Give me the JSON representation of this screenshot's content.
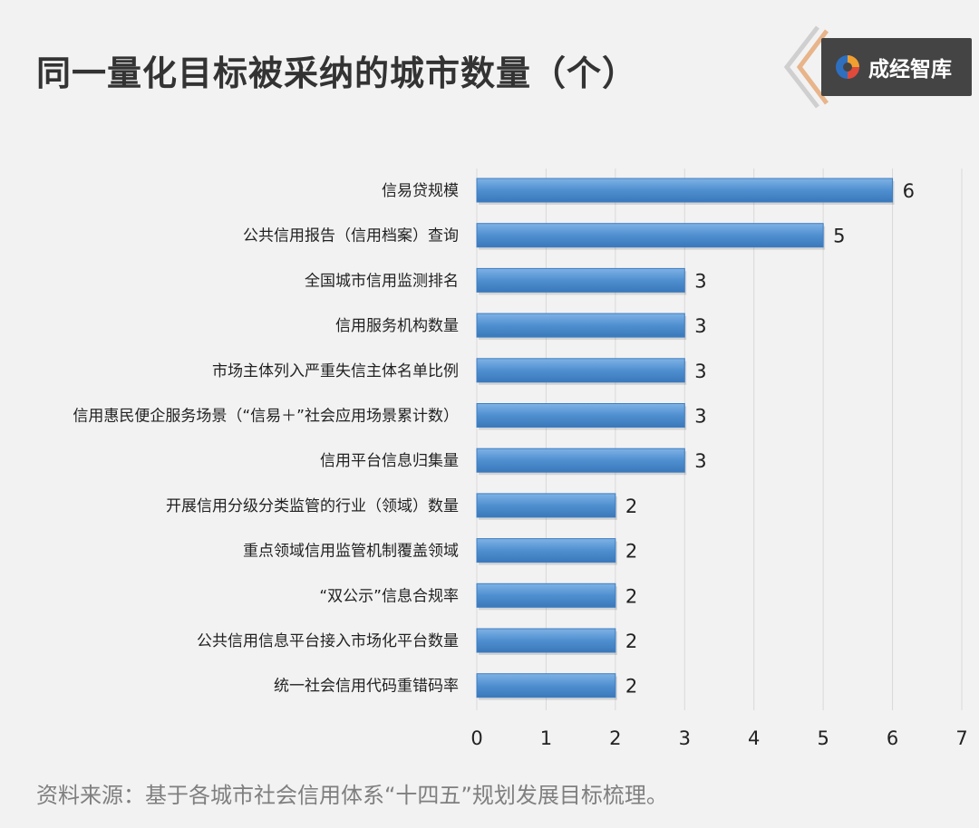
{
  "header": {
    "title": "同一量化目标被采纳的城市数量（个）",
    "logo_text": "成经智库",
    "logo_icon": "swirl-logo-icon",
    "accent_colors": {
      "bar": "#4f8fd0",
      "chevron": "#e8b48a",
      "logo_bg": "#444444"
    }
  },
  "chart_data": {
    "type": "bar",
    "orientation": "horizontal",
    "title": "同一量化目标被采纳的城市数量（个）",
    "xlabel": "",
    "ylabel": "",
    "xlim": [
      0,
      7
    ],
    "x_ticks": [
      0,
      1,
      2,
      3,
      4,
      5,
      6,
      7
    ],
    "grid": "vertical",
    "legend": "none",
    "categories": [
      "信易贷规模",
      "公共信用报告（信用档案）查询",
      "全国城市信用监测排名",
      "信用服务机构数量",
      "市场主体列入严重失信主体名单比例",
      "信用惠民便企服务场景（“信易＋”社会应用场景累计数）",
      "信用平台信息归集量",
      "开展信用分级分类监管的行业（领域）数量",
      "重点领域信用监管机制覆盖领域",
      "“双公示”信息合规率",
      "公共信用信息平台接入市场化平台数量",
      "统一社会信用代码重错码率"
    ],
    "values": [
      6,
      5,
      3,
      3,
      3,
      3,
      3,
      2,
      2,
      2,
      2,
      2
    ]
  },
  "footer": {
    "source": "资料来源：基于各城市社会信用体系“十四五”规划发展目标梳理。"
  }
}
